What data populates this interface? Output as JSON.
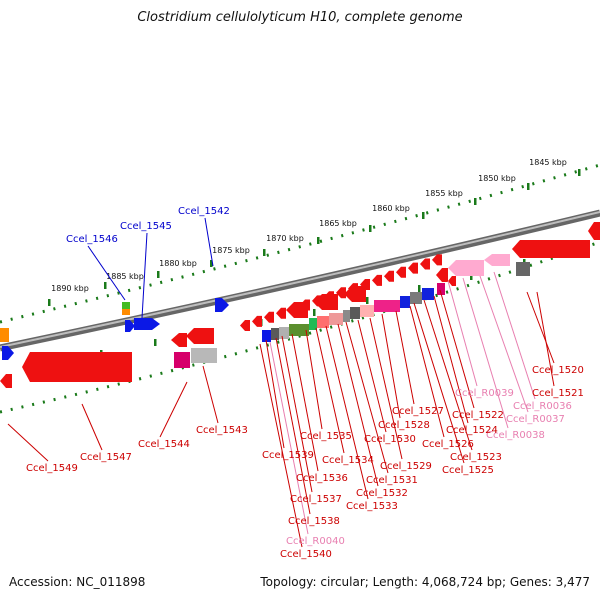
{
  "title": "Clostridium cellulolyticum H10, complete genome",
  "footer": {
    "accession": "Accession: NC_011898",
    "summary": "Topology: circular; Length: 4,068,724 bp; Genes: 3,477"
  },
  "colors": {
    "gene_label_red": "#cc0000",
    "rna_label_pink": "#e87fb0",
    "upper_label_blue": "#0000cc",
    "scale_green": "#1a7a1a",
    "backbone_gray": "#808080"
  },
  "scale_labels": [
    "1845 kbp",
    "1850 kbp",
    "1855 kbp",
    "1860 kbp",
    "1865 kbp",
    "1870 kbp",
    "1875 kbp",
    "1880 kbp",
    "1885 kbp",
    "1890 kbp"
  ],
  "upper_labels": [
    "Ccel_1546",
    "Ccel_1545",
    "Ccel_1542"
  ],
  "lower_labels": [
    "Ccel_1520",
    "Ccel_1521",
    "Ccel_R0036",
    "Ccel_R0037",
    "Ccel_R0038",
    "Ccel_R0039",
    "Ccel_1522",
    "Ccel_1524",
    "Ccel_1523",
    "Ccel_1525",
    "Ccel_1526",
    "Ccel_1527",
    "Ccel_1528",
    "Ccel_1529",
    "Ccel_1530",
    "Ccel_1531",
    "Ccel_1532",
    "Ccel_1533",
    "Ccel_1534",
    "Ccel_1535",
    "Ccel_1536",
    "Ccel_1537",
    "Ccel_1538",
    "Ccel_1539",
    "Ccel_R0040",
    "Ccel_1540",
    "Ccel_1543",
    "Ccel_1544",
    "Ccel_1547",
    "Ccel_1549"
  ]
}
